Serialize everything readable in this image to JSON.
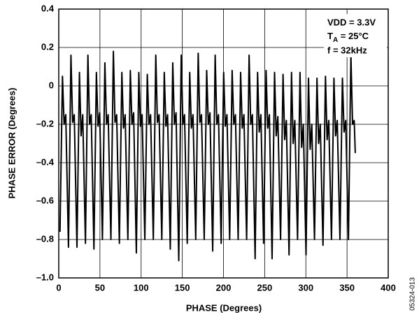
{
  "chart_data": {
    "type": "line",
    "x_label": "PHASE (Degrees)",
    "y_label": "PHASE ERROR (Degrees)",
    "annotations": {
      "vdd": "VDD = 3.3V",
      "temp": [
        "T",
        "A",
        " = 25°C"
      ],
      "freq": "f = 32kHz"
    },
    "figure_id": "05324-013",
    "xlim": [
      0,
      400
    ],
    "ylim": [
      -1.0,
      0.4
    ],
    "xticks": [
      0,
      50,
      100,
      150,
      200,
      250,
      300,
      350,
      400
    ],
    "yticks": [
      0.4,
      0.2,
      0,
      {
        "value": -0.2,
        "label": "–0.2"
      },
      {
        "value": -0.4,
        "label": "–0.4"
      },
      {
        "value": -0.6,
        "label": "–0.6"
      },
      {
        "value": -0.8,
        "label": "–0.8"
      },
      {
        "value": -1.0,
        "label": "–1.0"
      }
    ],
    "grid": true,
    "series": [
      {
        "color": "#000000",
        "x": [
          1.5,
          4.5,
          6.5,
          8.5,
          11.8,
          14.8,
          16.8,
          18.8,
          22.1,
          25.1,
          27.1,
          29.1,
          32.4,
          35.4,
          37.4,
          39.4,
          42.7,
          45.7,
          47.7,
          49.7,
          53,
          56,
          58,
          60,
          63.3,
          66.3,
          68.3,
          70.3,
          73.6,
          76.6,
          78.6,
          80.6,
          83.9,
          86.9,
          88.9,
          90.9,
          94.2,
          97.2,
          99.2,
          101.2,
          104.5,
          107.5,
          109.5,
          111.5,
          114.8,
          117.8,
          119.8,
          121.8,
          125.1,
          128.1,
          130.1,
          132.1,
          135.4,
          138.4,
          140.4,
          142.4,
          145.7,
          148.7,
          150.7,
          152.7,
          156,
          159,
          161,
          163,
          166.3,
          169.3,
          171.3,
          173.3,
          176.6,
          179.6,
          181.6,
          183.6,
          186.9,
          189.9,
          191.9,
          193.9,
          197.2,
          200.2,
          202.2,
          204.2,
          207.5,
          210.5,
          212.5,
          214.5,
          217.8,
          220.8,
          222.8,
          224.8,
          228.1,
          231.1,
          233.1,
          235.1,
          238.4,
          241.4,
          243.4,
          245.4,
          248.7,
          251.7,
          253.7,
          255.7,
          259,
          262,
          264,
          266,
          269.3,
          272.3,
          274.3,
          276.3,
          279.6,
          282.6,
          284.6,
          286.6,
          289.9,
          292.9,
          294.9,
          296.9,
          300.2,
          303.2,
          305.2,
          307.2,
          310.5,
          313.5,
          315.5,
          317.5,
          320.8,
          323.8,
          325.8,
          327.8,
          331.1,
          334.1,
          336.1,
          338.1,
          341.4,
          344.4,
          346.4,
          348.4,
          351.7,
          354.7,
          356.7,
          358.7,
          360
        ],
        "values": [
          -0.76,
          0.05,
          -0.2,
          -0.15,
          -0.84,
          0.16,
          -0.19,
          -0.15,
          -0.84,
          0.07,
          -0.26,
          -0.15,
          -0.82,
          0.16,
          -0.2,
          -0.15,
          -0.85,
          0.07,
          -0.21,
          -0.14,
          -0.8,
          0.12,
          -0.2,
          -0.15,
          -0.8,
          0.18,
          -0.19,
          -0.15,
          -0.82,
          0.07,
          -0.22,
          -0.15,
          -0.8,
          0.08,
          -0.2,
          -0.14,
          -0.87,
          0.07,
          -0.21,
          -0.15,
          -0.8,
          0.06,
          -0.2,
          -0.15,
          -0.8,
          0.16,
          -0.19,
          -0.15,
          -0.8,
          0.07,
          -0.21,
          -0.15,
          -0.85,
          0.12,
          -0.2,
          -0.14,
          -0.91,
          0.16,
          -0.2,
          -0.15,
          -0.82,
          0.07,
          -0.22,
          -0.15,
          -0.8,
          0.17,
          -0.19,
          -0.15,
          -0.8,
          0.08,
          -0.2,
          -0.14,
          -0.86,
          0.16,
          -0.2,
          -0.15,
          -0.82,
          0.07,
          -0.21,
          -0.15,
          -0.8,
          0.08,
          -0.2,
          -0.15,
          -0.8,
          0.07,
          -0.22,
          -0.15,
          -0.8,
          0.16,
          -0.2,
          -0.15,
          -0.9,
          0.07,
          -0.24,
          -0.15,
          -0.82,
          0.08,
          -0.22,
          -0.15,
          -0.9,
          0.07,
          -0.26,
          -0.16,
          -0.8,
          0.06,
          -0.28,
          -0.18,
          -0.88,
          0.07,
          -0.3,
          -0.18,
          -0.8,
          0.07,
          -0.32,
          -0.2,
          -0.88,
          0.04,
          -0.33,
          -0.2,
          -0.8,
          0.04,
          -0.3,
          -0.2,
          -0.83,
          0.05,
          -0.28,
          -0.18,
          -0.8,
          0.04,
          -0.26,
          -0.18,
          -0.8,
          0.04,
          -0.24,
          -0.18,
          -0.8,
          0.16,
          -0.2,
          -0.18,
          -0.35
        ]
      }
    ]
  }
}
